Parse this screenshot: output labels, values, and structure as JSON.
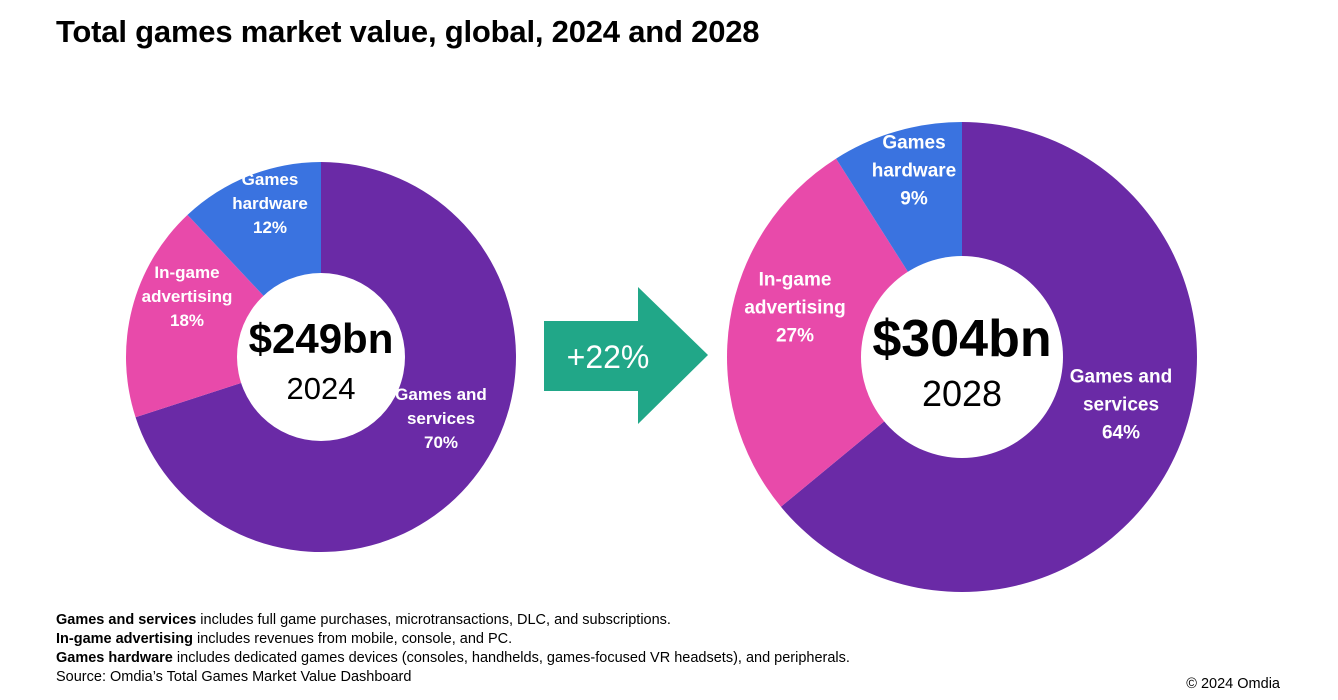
{
  "colors": {
    "games_and_services": "#6a2aa6",
    "in_game_advertising": "#e84aaa",
    "games_hardware": "#3a73e0",
    "arrow": "#21a788"
  },
  "arrow": {
    "label": "+22%"
  },
  "chart_data": [
    {
      "type": "pie",
      "title": "Total games market value, global, 2024 and 2028",
      "center_value": "$249bn",
      "center_year": "2024",
      "slices": [
        {
          "key": "games_and_services",
          "lines": [
            "Games and",
            "services",
            "70%"
          ],
          "value": 70
        },
        {
          "key": "in_game_advertising",
          "lines": [
            "In-game",
            "advertising",
            "18%"
          ],
          "value": 18
        },
        {
          "key": "games_hardware",
          "lines": [
            "Games",
            "hardware",
            "12%"
          ],
          "value": 12
        }
      ]
    },
    {
      "type": "pie",
      "center_value": "$304bn",
      "center_year": "2028",
      "slices": [
        {
          "key": "games_and_services",
          "lines": [
            "Games and",
            "services",
            "64%"
          ],
          "value": 64
        },
        {
          "key": "in_game_advertising",
          "lines": [
            "In-game",
            "advertising",
            "27%"
          ],
          "value": 27
        },
        {
          "key": "games_hardware",
          "lines": [
            "Games",
            "hardware",
            "9%"
          ],
          "value": 9
        }
      ]
    }
  ],
  "notes": [
    {
      "term": "Games and services",
      "text": " includes full game purchases, microtransactions, DLC, and subscriptions."
    },
    {
      "term": "In-game advertising",
      "text": " includes revenues from mobile, console, and PC."
    },
    {
      "term": "Games hardware",
      "text": " includes dedicated games devices (consoles, handhelds, games-focused VR headsets), and peripherals."
    }
  ],
  "source": "Source: Omdia’s Total Games Market Value Dashboard",
  "copyright": "© 2024 Omdia"
}
